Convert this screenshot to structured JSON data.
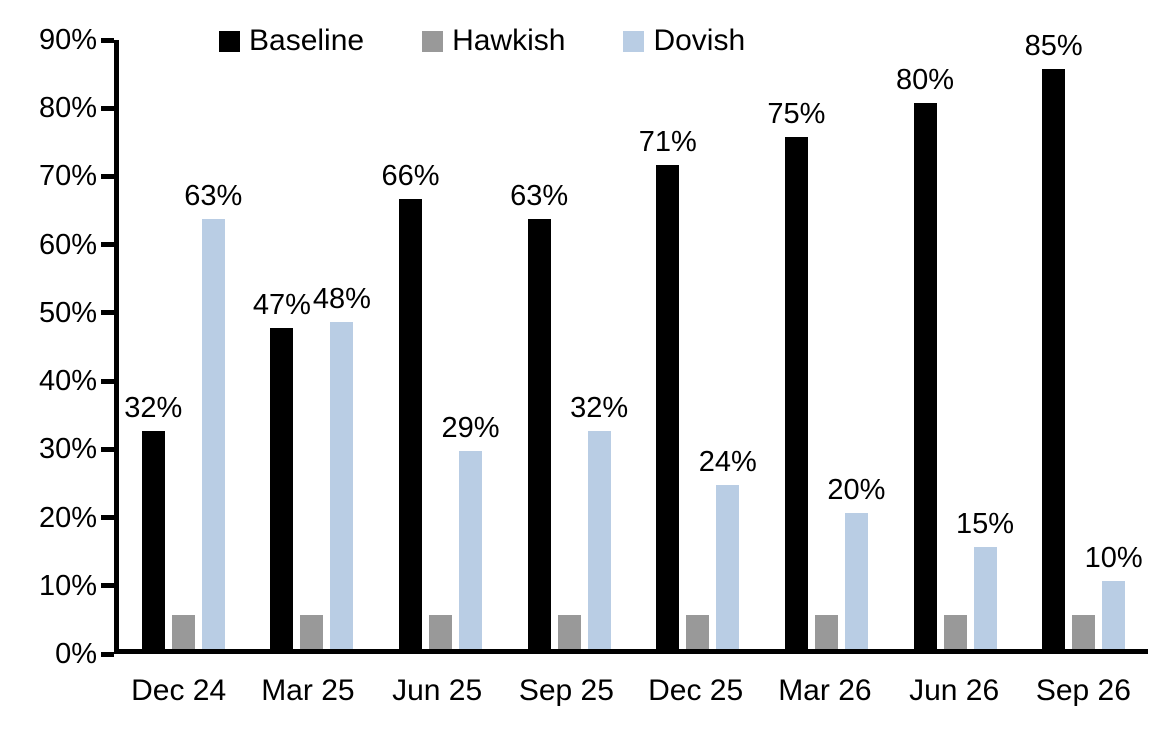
{
  "chart_data": {
    "type": "bar",
    "categories": [
      "Dec 24",
      "Mar 25",
      "Jun 25",
      "Sep 25",
      "Dec 25",
      "Mar 26",
      "Jun 26",
      "Sep 26"
    ],
    "series": [
      {
        "name": "Baseline",
        "color": "#000000",
        "values": [
          32,
          47,
          66,
          63,
          71,
          75,
          80,
          85
        ],
        "show_labels": true
      },
      {
        "name": "Hawkish",
        "color": "#999999",
        "values": [
          5,
          5,
          5,
          5,
          5,
          5,
          5,
          5
        ],
        "show_labels": false
      },
      {
        "name": "Dovish",
        "color": "#b9cde4",
        "values": [
          63,
          48,
          29,
          32,
          24,
          20,
          15,
          10
        ],
        "show_labels": true
      }
    ],
    "title": "",
    "xlabel": "",
    "ylabel": "",
    "ylim": [
      0,
      90
    ],
    "y_tick_step": 10,
    "y_tick_labels": [
      "0%",
      "10%",
      "20%",
      "30%",
      "40%",
      "50%",
      "60%",
      "70%",
      "80%",
      "90%"
    ],
    "label_suffix": "%",
    "legend_position": "top-inside",
    "grid": false
  }
}
